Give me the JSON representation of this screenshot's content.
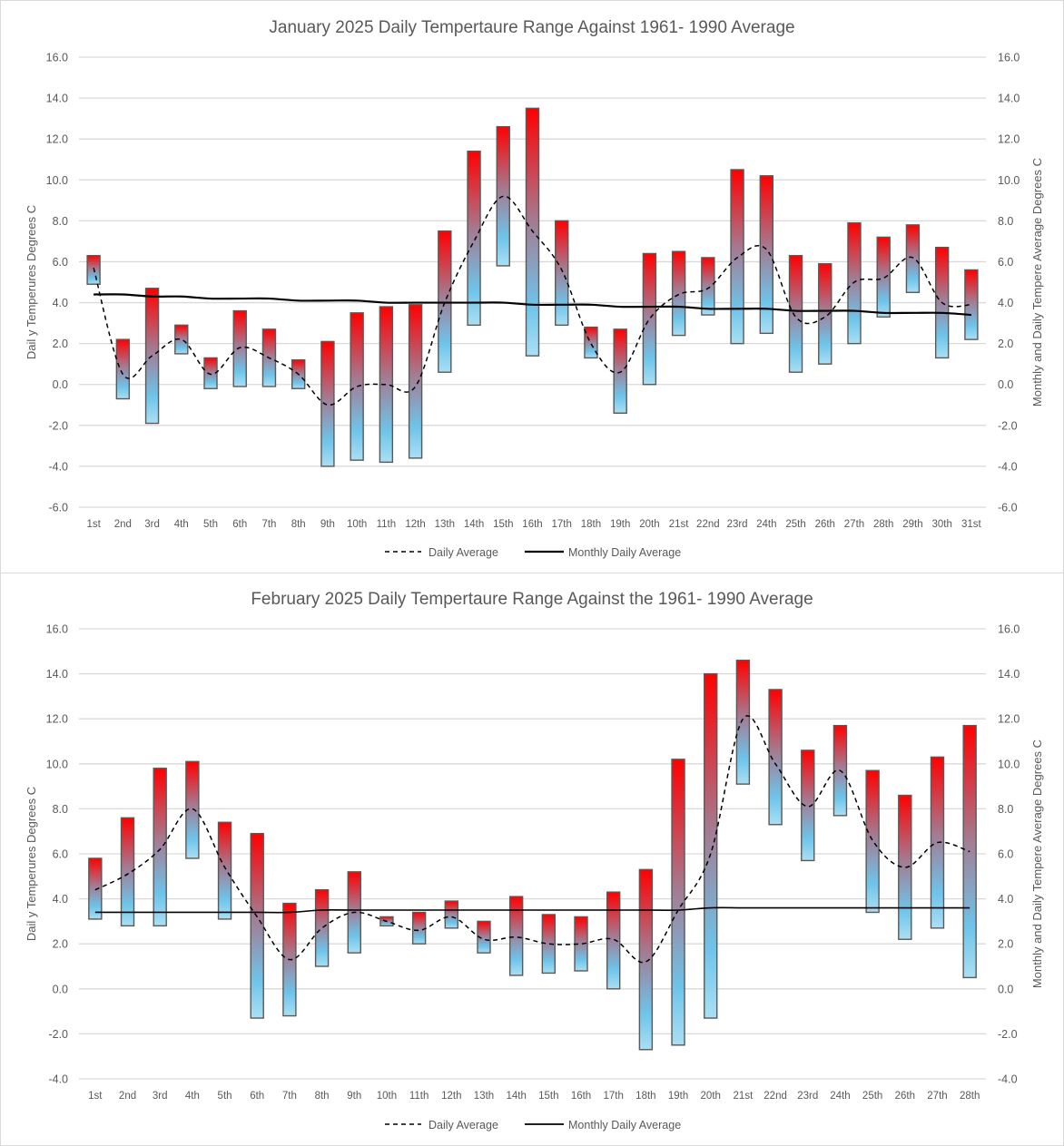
{
  "chart_data": [
    {
      "type": "bar",
      "subtype": "floating-range-with-lines",
      "title": "January 2025 Daily Tempertaure Range Against 1961- 1990 Average",
      "ylabel": "Dail y Temperures Degrees C",
      "y2label": "Monthly and Daily Tempere Average Degrees C",
      "xlabel": "",
      "ylim": [
        -6,
        16
      ],
      "y2lim": [
        -6,
        16
      ],
      "ytick_step": 2,
      "yticks": [
        "-6.0",
        "-4.0",
        "-2.0",
        "0.0",
        "2.0",
        "4.0",
        "6.0",
        "8.0",
        "10.0",
        "12.0",
        "14.0",
        "16.0"
      ],
      "grid": true,
      "legend_position": "bottom",
      "categories": [
        "1st",
        "2nd",
        "3rd",
        "4th",
        "5th",
        "6th",
        "7th",
        "8th",
        "9th",
        "10th",
        "11th",
        "12th",
        "13th",
        "14th",
        "15th",
        "16th",
        "17th",
        "18th",
        "19th",
        "20th",
        "21st",
        "22nd",
        "23rd",
        "24th",
        "25th",
        "26th",
        "27th",
        "28th",
        "29th",
        "30th",
        "31st"
      ],
      "range_series": {
        "name": "Daily Temperature Range",
        "max": [
          6.3,
          2.2,
          4.7,
          2.9,
          1.3,
          3.6,
          2.7,
          1.2,
          2.1,
          3.5,
          3.8,
          3.9,
          7.5,
          11.4,
          12.6,
          13.5,
          8.0,
          2.8,
          2.7,
          6.4,
          6.5,
          6.2,
          10.5,
          10.2,
          6.3,
          5.9,
          7.9,
          7.2,
          7.8,
          6.7,
          5.6
        ],
        "min": [
          4.9,
          -0.7,
          -1.9,
          1.5,
          -0.2,
          -0.1,
          -0.1,
          -0.2,
          -4.0,
          -3.7,
          -3.8,
          -3.6,
          0.6,
          2.9,
          5.8,
          1.4,
          2.9,
          1.3,
          -1.4,
          0.0,
          2.4,
          3.4,
          2.0,
          2.5,
          0.6,
          1.0,
          2.0,
          3.3,
          4.5,
          1.3,
          2.2
        ]
      },
      "series": [
        {
          "name": "Daily Average",
          "style": "dashed",
          "values": [
            5.7,
            0.5,
            1.4,
            2.2,
            0.5,
            1.8,
            1.3,
            0.5,
            -1.0,
            -0.1,
            0.0,
            -0.1,
            4.0,
            7.0,
            9.2,
            7.5,
            5.6,
            2.0,
            0.6,
            3.2,
            4.4,
            4.7,
            6.2,
            6.6,
            3.3,
            3.3,
            5.0,
            5.2,
            6.2,
            4.0,
            3.9
          ]
        },
        {
          "name": "Monthly Daily Average",
          "style": "solid",
          "values": [
            4.4,
            4.4,
            4.3,
            4.3,
            4.2,
            4.2,
            4.2,
            4.1,
            4.1,
            4.1,
            4.0,
            4.0,
            4.0,
            4.0,
            4.0,
            3.9,
            3.9,
            3.9,
            3.8,
            3.8,
            3.8,
            3.7,
            3.7,
            3.7,
            3.6,
            3.6,
            3.6,
            3.5,
            3.5,
            3.5,
            3.4
          ]
        }
      ],
      "legend": [
        "Daily Average",
        "Monthly Daily Average"
      ]
    },
    {
      "type": "bar",
      "subtype": "floating-range-with-lines",
      "title": "February 2025 Daily Tempertaure Range Against the 1961- 1990 Average",
      "ylabel": "Dail y Temperures Degrees C",
      "y2label": "Monthly and Daily Tempere Average Degrees C",
      "xlabel": "",
      "ylim": [
        -4,
        16
      ],
      "y2lim": [
        -4,
        16
      ],
      "ytick_step": 2,
      "yticks": [
        "-4.0",
        "-2.0",
        "0.0",
        "2.0",
        "4.0",
        "6.0",
        "8.0",
        "10.0",
        "12.0",
        "14.0",
        "16.0"
      ],
      "grid": true,
      "legend_position": "bottom",
      "categories": [
        "1st",
        "2nd",
        "3rd",
        "4th",
        "5th",
        "6th",
        "7th",
        "8th",
        "9th",
        "10th",
        "11th",
        "12th",
        "13th",
        "14th",
        "15th",
        "16th",
        "17th",
        "18th",
        "19th",
        "20th",
        "21st",
        "22nd",
        "23rd",
        "24th",
        "25th",
        "26th",
        "27th",
        "28th"
      ],
      "range_series": {
        "name": "Daily Temperature Range",
        "max": [
          5.8,
          7.6,
          9.8,
          10.1,
          7.4,
          6.9,
          3.8,
          4.4,
          5.2,
          3.2,
          3.4,
          3.9,
          3.0,
          4.1,
          3.3,
          3.2,
          4.3,
          5.3,
          10.2,
          14.0,
          14.6,
          13.3,
          10.6,
          11.7,
          9.7,
          8.6,
          10.3,
          11.7
        ],
        "min": [
          3.1,
          2.8,
          2.8,
          5.8,
          3.1,
          -1.3,
          -1.2,
          1.0,
          1.6,
          2.8,
          2.0,
          2.7,
          1.6,
          0.6,
          0.7,
          0.8,
          0.0,
          -2.7,
          -2.5,
          -1.3,
          9.1,
          7.3,
          5.7,
          7.7,
          3.4,
          2.2,
          2.7,
          0.5
        ]
      },
      "series": [
        {
          "name": "Daily Average",
          "style": "dashed",
          "values": [
            4.4,
            5.1,
            6.2,
            8.0,
            5.4,
            3.2,
            1.3,
            2.7,
            3.4,
            3.0,
            2.6,
            3.2,
            2.2,
            2.3,
            2.0,
            2.0,
            2.2,
            1.2,
            3.5,
            6.0,
            12.0,
            10.0,
            8.1,
            9.7,
            6.6,
            5.4,
            6.5,
            6.1
          ]
        },
        {
          "name": "Monthly Daily Average",
          "style": "solid",
          "values": [
            3.4,
            3.4,
            3.4,
            3.4,
            3.4,
            3.4,
            3.4,
            3.5,
            3.5,
            3.5,
            3.5,
            3.5,
            3.5,
            3.5,
            3.5,
            3.5,
            3.5,
            3.5,
            3.5,
            3.6,
            3.6,
            3.6,
            3.6,
            3.6,
            3.6,
            3.6,
            3.6,
            3.6
          ]
        }
      ],
      "legend": [
        "Daily Average",
        "Monthly Daily Average"
      ]
    }
  ],
  "colors": {
    "bar_top": "#ff0000",
    "bar_mid": "#a57a90",
    "bar_blue": "#6ec4ea",
    "bar_bottom": "#aadff4",
    "bar_border": "#595959",
    "line": "#000000",
    "grid": "#d9d9d9",
    "text": "#595959"
  }
}
